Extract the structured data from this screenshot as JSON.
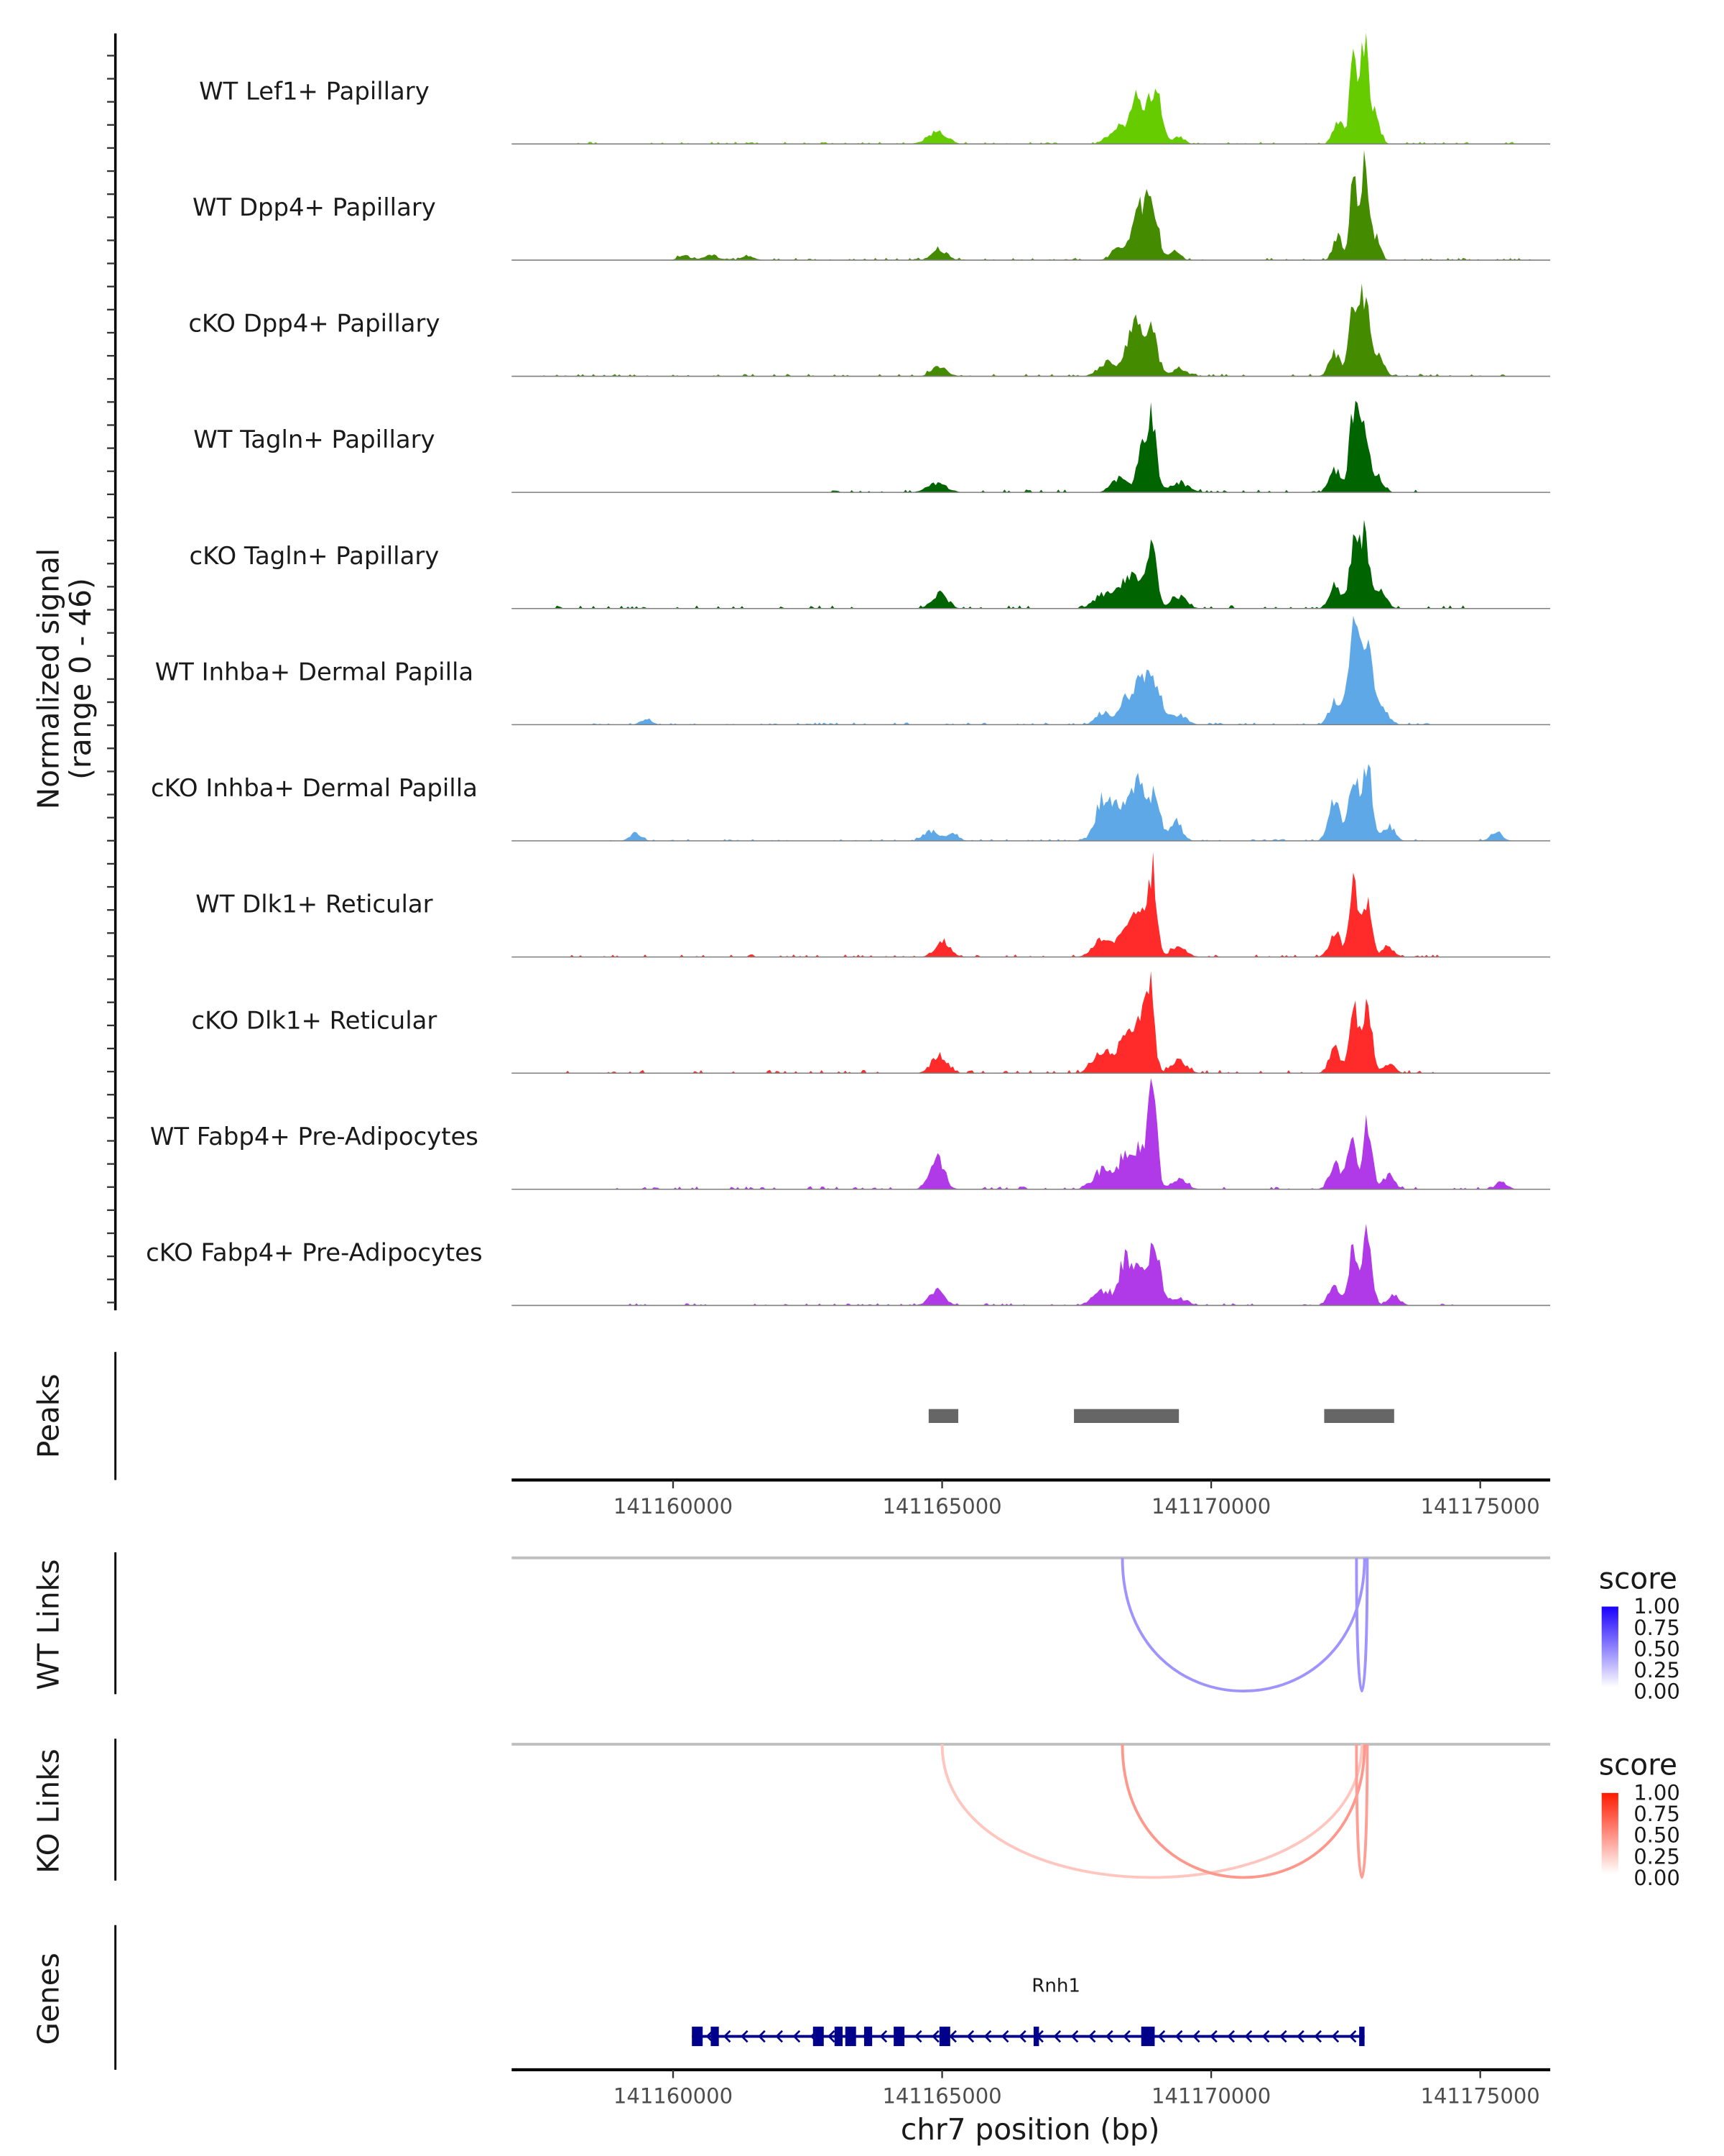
{
  "chart_data": {
    "type": "area",
    "title": "",
    "xlabel": "chr7 position (bp)",
    "ylabel": "Normalized signal\n(range 0 - 46)",
    "ylabel_lines": [
      "Normalized signal",
      "(range 0 - 46)"
    ],
    "ylim": [
      0,
      46
    ],
    "xlim": [
      141157000,
      141176300
    ],
    "x_ticks": [
      141160000,
      141165000,
      141170000,
      141175000
    ],
    "x_tick_labels": [
      "141160000",
      "141165000",
      "141170000",
      "141175000"
    ],
    "coverage_tracks": [
      {
        "name": "WT Lef1+ Papillary",
        "color": "#66cc00",
        "peaks": [
          [
            141164900,
            5,
            250
          ],
          [
            141168250,
            7,
            200
          ],
          [
            141168550,
            9,
            150
          ],
          [
            141168650,
            12,
            150
          ],
          [
            141168900,
            17,
            150
          ],
          [
            141169050,
            12,
            120
          ],
          [
            141169400,
            3,
            150
          ],
          [
            141172350,
            10,
            120
          ],
          [
            141172650,
            42,
            100
          ],
          [
            141172850,
            40,
            100
          ],
          [
            141173050,
            12,
            120
          ]
        ],
        "noise": [
          [
            141158000,
            141176000,
            0.6
          ]
        ]
      },
      {
        "name": "WT Dpp4+ Papillary",
        "color": "#458b00",
        "peaks": [
          [
            141160200,
            2,
            150
          ],
          [
            141160700,
            2,
            200
          ],
          [
            141161400,
            2,
            150
          ],
          [
            141164950,
            4,
            200
          ],
          [
            141168300,
            5,
            200
          ],
          [
            141168550,
            7,
            150
          ],
          [
            141168650,
            13,
            120
          ],
          [
            141168800,
            17,
            120
          ],
          [
            141168950,
            18,
            120
          ],
          [
            141169300,
            4,
            150
          ],
          [
            141172350,
            10,
            120
          ],
          [
            141172650,
            36,
            100
          ],
          [
            141172850,
            36,
            100
          ],
          [
            141173050,
            10,
            120
          ]
        ],
        "noise": [
          [
            141160000,
            141176000,
            0.6
          ]
        ]
      },
      {
        "name": "cKO Dpp4+ Papillary",
        "color": "#458b00",
        "peaks": [
          [
            141164950,
            4,
            200
          ],
          [
            141168100,
            6,
            250
          ],
          [
            141168500,
            14,
            150
          ],
          [
            141168650,
            16,
            150
          ],
          [
            141168900,
            18,
            150
          ],
          [
            141169400,
            3,
            200
          ],
          [
            141172300,
            10,
            150
          ],
          [
            141172650,
            27,
            120
          ],
          [
            141172850,
            32,
            120
          ],
          [
            141173100,
            8,
            150
          ]
        ],
        "noise": [
          [
            141157500,
            141175500,
            0.7
          ]
        ]
      },
      {
        "name": "WT Tagln+ Papillary",
        "color": "#006400",
        "peaks": [
          [
            141164900,
            4,
            250
          ],
          [
            141168300,
            6,
            200
          ],
          [
            141168700,
            16,
            120
          ],
          [
            141168900,
            30,
            120
          ],
          [
            141169400,
            4,
            250
          ],
          [
            141172300,
            9,
            150
          ],
          [
            141172650,
            32,
            120
          ],
          [
            141172850,
            28,
            120
          ],
          [
            141173100,
            6,
            150
          ]
        ],
        "noise": [
          [
            141162500,
            141174200,
            0.8
          ]
        ]
      },
      {
        "name": "cKO Tagln+ Papillary",
        "color": "#006400",
        "peaks": [
          [
            141164950,
            6,
            200
          ],
          [
            141168000,
            6,
            250
          ],
          [
            141168400,
            10,
            200
          ],
          [
            141168650,
            12,
            150
          ],
          [
            141168900,
            26,
            120
          ],
          [
            141169400,
            5,
            200
          ],
          [
            141172300,
            10,
            150
          ],
          [
            141172650,
            28,
            120
          ],
          [
            141172850,
            30,
            120
          ],
          [
            141173150,
            8,
            150
          ]
        ],
        "noise": [
          [
            141157800,
            141175300,
            0.9
          ]
        ]
      },
      {
        "name": "WT Inhba+ Dermal Papilla",
        "color": "#5fa8e8",
        "peaks": [
          [
            141159500,
            2,
            150
          ],
          [
            141168000,
            5,
            200
          ],
          [
            141168400,
            10,
            150
          ],
          [
            141168700,
            18,
            200
          ],
          [
            141168950,
            14,
            200
          ],
          [
            141169400,
            4,
            200
          ],
          [
            141172300,
            10,
            150
          ],
          [
            141172650,
            35,
            150
          ],
          [
            141172900,
            33,
            150
          ],
          [
            141173200,
            6,
            150
          ]
        ],
        "noise": [
          [
            141158500,
            141174300,
            0.6
          ]
        ]
      },
      {
        "name": "cKO Inhba+ Dermal Papilla",
        "color": "#5fa8e8",
        "peaks": [
          [
            141159300,
            3,
            150
          ],
          [
            141164800,
            4,
            200
          ],
          [
            141165200,
            3,
            150
          ],
          [
            141168000,
            18,
            200
          ],
          [
            141168350,
            15,
            200
          ],
          [
            141168650,
            24,
            150
          ],
          [
            141168950,
            20,
            150
          ],
          [
            141169350,
            8,
            150
          ],
          [
            141172300,
            18,
            150
          ],
          [
            141172650,
            28,
            120
          ],
          [
            141172900,
            32,
            120
          ],
          [
            141173300,
            6,
            150
          ],
          [
            141175300,
            4,
            150
          ]
        ],
        "noise": [
          [
            141158800,
            141175400,
            0.5
          ]
        ]
      },
      {
        "name": "WT Dlk1+ Reticular",
        "color": "#ff2a2a",
        "peaks": [
          [
            141165000,
            6,
            200
          ],
          [
            141168000,
            8,
            250
          ],
          [
            141168400,
            14,
            150
          ],
          [
            141168650,
            18,
            150
          ],
          [
            141168900,
            36,
            120
          ],
          [
            141169400,
            4,
            200
          ],
          [
            141172300,
            10,
            150
          ],
          [
            141172650,
            28,
            120
          ],
          [
            141172900,
            22,
            120
          ],
          [
            141173300,
            4,
            150
          ]
        ],
        "noise": [
          [
            141158000,
            141174300,
            0.7
          ]
        ]
      },
      {
        "name": "cKO Dlk1+ Reticular",
        "color": "#ff2a2a",
        "peaks": [
          [
            141164950,
            8,
            200
          ],
          [
            141168000,
            9,
            250
          ],
          [
            141168400,
            16,
            150
          ],
          [
            141168650,
            20,
            150
          ],
          [
            141168850,
            36,
            120
          ],
          [
            141169400,
            5,
            200
          ],
          [
            141172300,
            10,
            150
          ],
          [
            141172650,
            28,
            120
          ],
          [
            141172900,
            28,
            120
          ],
          [
            141173300,
            4,
            150
          ]
        ],
        "noise": [
          [
            141158000,
            141174300,
            0.9
          ]
        ]
      },
      {
        "name": "WT Fabp4+ Pre-Adipocytes",
        "color": "#b03ae8",
        "peaks": [
          [
            141164900,
            14,
            180
          ],
          [
            141168000,
            8,
            250
          ],
          [
            141168400,
            14,
            150
          ],
          [
            141168650,
            16,
            150
          ],
          [
            141168900,
            42,
            120
          ],
          [
            141169400,
            4,
            200
          ],
          [
            141172300,
            10,
            150
          ],
          [
            141172600,
            20,
            120
          ],
          [
            141172900,
            28,
            120
          ],
          [
            141173300,
            6,
            150
          ],
          [
            141175400,
            3,
            150
          ]
        ],
        "noise": [
          [
            141158500,
            141175500,
            0.8
          ]
        ]
      },
      {
        "name": "cKO Fabp4+ Pre-Adipocytes",
        "color": "#b03ae8",
        "peaks": [
          [
            141164900,
            6,
            200
          ],
          [
            141168000,
            6,
            250
          ],
          [
            141168400,
            18,
            150
          ],
          [
            141168650,
            14,
            150
          ],
          [
            141168950,
            26,
            150
          ],
          [
            141169400,
            3,
            200
          ],
          [
            141172300,
            8,
            150
          ],
          [
            141172650,
            24,
            120
          ],
          [
            141172900,
            30,
            120
          ],
          [
            141173400,
            4,
            150
          ]
        ],
        "noise": [
          [
            141158500,
            141174500,
            0.6
          ]
        ]
      }
    ],
    "peaks_track": {
      "label": "Peaks",
      "color": "#666666",
      "regions": [
        [
          141164750,
          141165300
        ],
        [
          141167450,
          141169400
        ],
        [
          141172100,
          141173400
        ]
      ]
    },
    "links_tracks": [
      {
        "label": "WT Links",
        "legend_title": "score",
        "low_color": "#ffffff",
        "high_color": "#1a00ff",
        "legend_ticks": [
          "1.00",
          "0.75",
          "0.50",
          "0.25",
          "0.00"
        ],
        "links": [
          {
            "start": 141168350,
            "end": 141172850,
            "score": 0.55
          },
          {
            "start": 141172700,
            "end": 141172900,
            "score": 0.55
          }
        ]
      },
      {
        "label": "KO Links",
        "legend_title": "score",
        "low_color": "#ffffff",
        "high_color": "#ff1a00",
        "legend_ticks": [
          "1.00",
          "0.75",
          "0.50",
          "0.25",
          "0.00"
        ],
        "links": [
          {
            "start": 141165000,
            "end": 141172800,
            "score": 0.2
          },
          {
            "start": 141168350,
            "end": 141172850,
            "score": 0.6
          },
          {
            "start": 141172700,
            "end": 141172900,
            "score": 0.55
          }
        ]
      }
    ],
    "genes_track": {
      "label": "Genes",
      "color": "#00008b",
      "genes": [
        {
          "name": "Rnh1",
          "start": 141160350,
          "end": 141172850,
          "strand": "-",
          "exons": [
            [
              141160350,
              141160550
            ],
            [
              141160700,
              141160850
            ],
            [
              141162600,
              141162800
            ],
            [
              141163000,
              141163150
            ],
            [
              141163200,
              141163400
            ],
            [
              141163550,
              141163700
            ],
            [
              141164100,
              141164300
            ],
            [
              141164950,
              141165150
            ],
            [
              141166700,
              141166800
            ],
            [
              141168700,
              141168950
            ],
            [
              141172750,
              141172850
            ]
          ]
        }
      ]
    }
  }
}
